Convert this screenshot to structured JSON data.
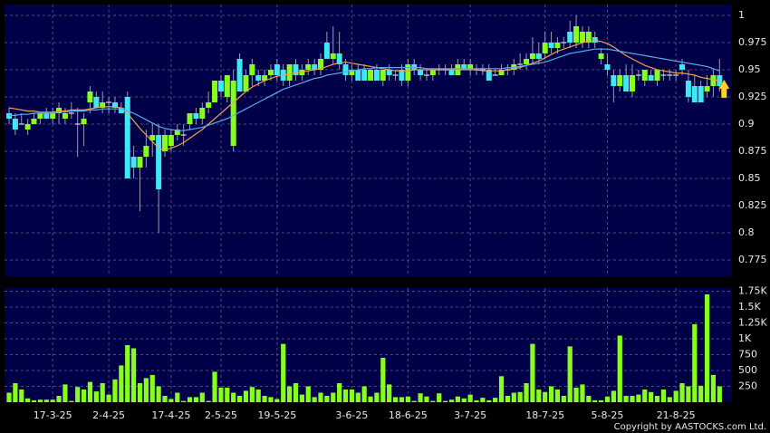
{
  "chart_data": [
    {
      "type": "candlestick",
      "open": [
        0.91,
        0.905,
        0.9,
        0.895,
        0.9,
        0.905,
        0.91,
        0.905,
        0.91,
        0.905,
        0.91,
        0.9,
        0.9,
        0.92,
        0.925,
        0.915,
        0.92,
        0.92,
        0.915,
        0.925,
        0.87,
        0.86,
        0.87,
        0.885,
        0.89,
        0.875,
        0.88,
        0.89,
        0.89,
        0.9,
        0.91,
        0.905,
        0.915,
        0.92,
        0.94,
        0.925,
        0.88,
        0.96,
        0.93,
        0.945,
        0.945,
        0.94,
        0.945,
        0.955,
        0.95,
        0.94,
        0.955,
        0.945,
        0.95,
        0.955,
        0.95,
        0.975,
        0.96,
        0.965,
        0.955,
        0.945,
        0.95,
        0.95,
        0.94,
        0.95,
        0.94,
        0.95,
        0.945,
        0.95,
        0.94,
        0.955,
        0.95,
        0.945,
        0.945,
        0.95,
        0.95,
        0.95,
        0.945,
        0.955,
        0.95,
        0.95,
        0.95,
        0.95,
        0.945,
        0.945,
        0.95,
        0.95,
        0.955,
        0.955,
        0.96,
        0.965,
        0.965,
        0.975,
        0.97,
        0.975,
        0.985,
        0.975,
        0.975,
        0.975,
        0.98,
        0.96,
        0.955,
        0.945,
        0.935,
        0.945,
        0.93,
        0.945,
        0.94,
        0.945,
        0.94,
        0.945,
        0.945,
        0.945,
        0.955,
        0.94,
        0.935,
        0.935,
        0.93,
        0.935,
        0.945
      ],
      "high": [
        0.915,
        0.91,
        0.91,
        0.905,
        0.91,
        0.91,
        0.915,
        0.915,
        0.92,
        0.915,
        0.92,
        0.915,
        0.91,
        0.935,
        0.93,
        0.93,
        0.925,
        0.925,
        0.92,
        0.93,
        0.88,
        0.87,
        0.895,
        0.9,
        0.9,
        0.895,
        0.895,
        0.9,
        0.9,
        0.91,
        0.915,
        0.92,
        0.93,
        0.94,
        0.945,
        0.945,
        0.95,
        0.965,
        0.95,
        0.96,
        0.95,
        0.95,
        0.955,
        0.96,
        0.955,
        0.955,
        0.96,
        0.955,
        0.96,
        0.96,
        0.965,
        0.985,
        0.99,
        0.985,
        0.96,
        0.955,
        0.955,
        0.955,
        0.95,
        0.955,
        0.95,
        0.955,
        0.95,
        0.955,
        0.96,
        0.96,
        0.955,
        0.95,
        0.95,
        0.955,
        0.955,
        0.955,
        0.96,
        0.96,
        0.96,
        0.955,
        0.955,
        0.955,
        0.95,
        0.955,
        0.955,
        0.96,
        0.965,
        0.965,
        0.98,
        0.975,
        0.985,
        0.985,
        0.98,
        0.98,
        0.995,
        1,
        0.99,
        0.99,
        0.985,
        0.97,
        0.965,
        0.95,
        0.95,
        0.955,
        0.955,
        0.95,
        0.95,
        0.95,
        0.95,
        0.95,
        0.95,
        0.95,
        0.96,
        0.95,
        0.945,
        0.94,
        0.945,
        0.95,
        0.96
      ],
      "low": [
        0.9,
        0.89,
        0.9,
        0.89,
        0.9,
        0.9,
        0.905,
        0.9,
        0.9,
        0.9,
        0.905,
        0.87,
        0.88,
        0.91,
        0.915,
        0.91,
        0.91,
        0.91,
        0.91,
        0.85,
        0.85,
        0.82,
        0.86,
        0.87,
        0.8,
        0.87,
        0.875,
        0.885,
        0.88,
        0.895,
        0.9,
        0.9,
        0.91,
        0.92,
        0.925,
        0.92,
        0.875,
        0.93,
        0.93,
        0.935,
        0.935,
        0.935,
        0.94,
        0.94,
        0.935,
        0.935,
        0.94,
        0.94,
        0.945,
        0.945,
        0.945,
        0.96,
        0.955,
        0.95,
        0.94,
        0.94,
        0.94,
        0.94,
        0.94,
        0.94,
        0.935,
        0.94,
        0.94,
        0.935,
        0.935,
        0.945,
        0.94,
        0.94,
        0.94,
        0.945,
        0.945,
        0.945,
        0.945,
        0.95,
        0.945,
        0.945,
        0.945,
        0.94,
        0.945,
        0.945,
        0.945,
        0.945,
        0.95,
        0.95,
        0.955,
        0.955,
        0.96,
        0.965,
        0.965,
        0.97,
        0.97,
        0.97,
        0.97,
        0.97,
        0.97,
        0.955,
        0.945,
        0.92,
        0.93,
        0.93,
        0.925,
        0.94,
        0.935,
        0.94,
        0.935,
        0.94,
        0.94,
        0.94,
        0.945,
        0.92,
        0.92,
        0.92,
        0.925,
        0.925,
        0.93
      ],
      "close": [
        0.905,
        0.895,
        0.9,
        0.9,
        0.905,
        0.91,
        0.905,
        0.91,
        0.915,
        0.91,
        0.91,
        0.9,
        0.905,
        0.93,
        0.915,
        0.92,
        0.92,
        0.915,
        0.91,
        0.85,
        0.86,
        0.87,
        0.88,
        0.89,
        0.84,
        0.89,
        0.89,
        0.895,
        0.89,
        0.91,
        0.905,
        0.915,
        0.92,
        0.94,
        0.93,
        0.945,
        0.94,
        0.93,
        0.945,
        0.955,
        0.94,
        0.945,
        0.95,
        0.945,
        0.94,
        0.955,
        0.945,
        0.95,
        0.955,
        0.95,
        0.96,
        0.96,
        0.965,
        0.955,
        0.945,
        0.95,
        0.94,
        0.94,
        0.95,
        0.94,
        0.95,
        0.945,
        0.945,
        0.94,
        0.955,
        0.95,
        0.945,
        0.945,
        0.95,
        0.95,
        0.95,
        0.945,
        0.955,
        0.95,
        0.955,
        0.95,
        0.95,
        0.94,
        0.945,
        0.95,
        0.95,
        0.955,
        0.955,
        0.96,
        0.965,
        0.96,
        0.975,
        0.97,
        0.975,
        0.975,
        0.975,
        0.99,
        0.985,
        0.985,
        0.975,
        0.965,
        0.95,
        0.935,
        0.945,
        0.93,
        0.945,
        0.945,
        0.95,
        0.94,
        0.95,
        0.945,
        0.945,
        0.945,
        0.95,
        0.925,
        0.92,
        0.92,
        0.935,
        0.945,
        0.935
      ],
      "up_color": "#86ff1c",
      "down_color": "#3ee8f4",
      "flat_color": "#b8b8c8",
      "series": [
        {
          "color": "#f0a050",
          "values": [
            0.915,
            0.914,
            0.913,
            0.912,
            0.912,
            0.911,
            0.911,
            0.911,
            0.912,
            0.912,
            0.913,
            0.913,
            0.913,
            0.914,
            0.915,
            0.916,
            0.916,
            0.916,
            0.915,
            0.91,
            0.903,
            0.896,
            0.89,
            0.884,
            0.878,
            0.876,
            0.878,
            0.88,
            0.883,
            0.887,
            0.891,
            0.895,
            0.9,
            0.905,
            0.91,
            0.915,
            0.92,
            0.925,
            0.93,
            0.934,
            0.937,
            0.94,
            0.942,
            0.944,
            0.945,
            0.946,
            0.947,
            0.948,
            0.949,
            0.95,
            0.951,
            0.953,
            0.955,
            0.956,
            0.957,
            0.956,
            0.955,
            0.954,
            0.953,
            0.952,
            0.951,
            0.95,
            0.949,
            0.949,
            0.949,
            0.95,
            0.95,
            0.95,
            0.95,
            0.95,
            0.95,
            0.95,
            0.95,
            0.95,
            0.95,
            0.95,
            0.949,
            0.949,
            0.949,
            0.949,
            0.95,
            0.951,
            0.952,
            0.954,
            0.956,
            0.958,
            0.961,
            0.964,
            0.967,
            0.969,
            0.971,
            0.973,
            0.975,
            0.976,
            0.977,
            0.976,
            0.974,
            0.971,
            0.967,
            0.963,
            0.96,
            0.957,
            0.954,
            0.952,
            0.95,
            0.949,
            0.948,
            0.947,
            0.947,
            0.946,
            0.945,
            0.943,
            0.942,
            0.941,
            0.94
          ]
        },
        {
          "color": "#5aaaf0",
          "values": [
            0.908,
            0.908,
            0.909,
            0.909,
            0.91,
            0.91,
            0.91,
            0.91,
            0.911,
            0.911,
            0.912,
            0.912,
            0.912,
            0.913,
            0.913,
            0.914,
            0.914,
            0.914,
            0.914,
            0.912,
            0.91,
            0.907,
            0.904,
            0.901,
            0.898,
            0.896,
            0.895,
            0.894,
            0.894,
            0.895,
            0.896,
            0.897,
            0.899,
            0.901,
            0.903,
            0.905,
            0.908,
            0.911,
            0.914,
            0.917,
            0.92,
            0.923,
            0.926,
            0.929,
            0.932,
            0.934,
            0.936,
            0.938,
            0.94,
            0.942,
            0.943,
            0.945,
            0.946,
            0.947,
            0.948,
            0.949,
            0.95,
            0.951,
            0.951,
            0.952,
            0.952,
            0.952,
            0.952,
            0.952,
            0.952,
            0.952,
            0.952,
            0.951,
            0.951,
            0.951,
            0.951,
            0.951,
            0.951,
            0.951,
            0.951,
            0.951,
            0.951,
            0.951,
            0.951,
            0.951,
            0.952,
            0.952,
            0.953,
            0.954,
            0.955,
            0.956,
            0.957,
            0.959,
            0.961,
            0.963,
            0.965,
            0.966,
            0.967,
            0.968,
            0.969,
            0.969,
            0.969,
            0.968,
            0.967,
            0.966,
            0.965,
            0.964,
            0.963,
            0.962,
            0.961,
            0.96,
            0.959,
            0.958,
            0.957,
            0.956,
            0.955,
            0.954,
            0.953,
            0.951,
            0.949
          ]
        }
      ],
      "ylim": [
        0.76,
        1.01
      ],
      "yticks": [
        0.775,
        0.8,
        0.825,
        0.85,
        0.875,
        0.9,
        0.925,
        0.95,
        0.975,
        1
      ],
      "grid": true
    },
    {
      "type": "bar",
      "color": "#86ff1c",
      "categories": [
        null,
        null,
        null,
        null,
        null,
        null,
        null,
        "17-3-25",
        null,
        null,
        null,
        null,
        null,
        null,
        null,
        null,
        "2-4-25",
        null,
        null,
        null,
        null,
        null,
        null,
        null,
        null,
        null,
        "17-4-25",
        null,
        null,
        null,
        null,
        null,
        null,
        null,
        "2-5-25",
        null,
        null,
        null,
        null,
        null,
        null,
        null,
        null,
        "19-5-25",
        null,
        null,
        null,
        null,
        null,
        null,
        null,
        null,
        null,
        null,
        null,
        "3-6-25",
        null,
        null,
        null,
        null,
        null,
        null,
        null,
        null,
        "18-6-25",
        null,
        null,
        null,
        null,
        null,
        null,
        null,
        null,
        null,
        "3-7-25",
        null,
        null,
        null,
        null,
        null,
        null,
        null,
        null,
        null,
        null,
        null,
        "18-7-25",
        null,
        null,
        null,
        null,
        null,
        null,
        null,
        null,
        null,
        "5-8-25",
        null,
        null,
        null,
        null,
        null,
        null,
        null,
        null,
        null,
        null,
        "21-8-25",
        null,
        null,
        null,
        null,
        null,
        null,
        null
      ],
      "values": [
        150,
        300,
        200,
        60,
        30,
        40,
        40,
        40,
        100,
        280,
        20,
        240,
        200,
        320,
        170,
        300,
        120,
        360,
        580,
        900,
        850,
        300,
        380,
        430,
        250,
        100,
        50,
        150,
        20,
        80,
        80,
        150,
        20,
        480,
        230,
        230,
        150,
        100,
        180,
        240,
        200,
        100,
        80,
        50,
        920,
        250,
        300,
        120,
        250,
        80,
        150,
        100,
        150,
        300,
        200,
        200,
        150,
        250,
        90,
        150,
        700,
        280,
        80,
        80,
        90,
        20,
        140,
        90,
        20,
        140,
        20,
        40,
        90,
        60,
        120,
        30,
        70,
        30,
        70,
        410,
        100,
        150,
        160,
        300,
        920,
        200,
        160,
        250,
        200,
        100,
        880,
        230,
        280,
        100,
        30,
        30,
        90,
        180,
        1050,
        100,
        100,
        120,
        200,
        160,
        100,
        200,
        80,
        180,
        300,
        250,
        1230,
        260,
        1700,
        430,
        250
      ],
      "ylim": [
        0,
        1800
      ],
      "yticks": [
        250,
        500,
        750,
        {
          "value": 1000,
          "label": "1K"
        },
        {
          "value": 1250,
          "label": "1.25K"
        },
        {
          "value": 1500,
          "label": "1.5K"
        },
        {
          "value": 1750,
          "label": "1.75K"
        }
      ],
      "grid": true
    }
  ],
  "copyright": "Copyright by AASTOCKS.com Ltd."
}
